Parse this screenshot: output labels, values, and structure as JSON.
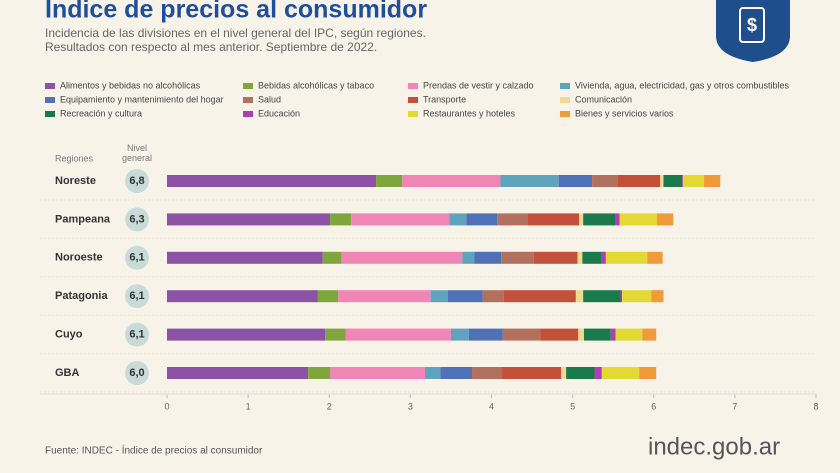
{
  "header": {
    "title": "Indice de precios al consumidor",
    "subtitle": [
      "Incidencia de las divisiones en el nivel general del IPC, según regiones.",
      "Resultados con respecto al mes anterior. Septiembre de 2022."
    ]
  },
  "chart_data": {
    "type": "stacked-bar-horizontal",
    "category_header": "Regiones",
    "categories": [
      "Noreste",
      "Pampeana",
      "Noroeste",
      "Patagonia",
      "Cuyo",
      "GBA"
    ],
    "nivel_general": {
      "label": "Nivel general",
      "values": [
        6.8,
        6.3,
        6.1,
        6.1,
        6.1,
        6.0
      ],
      "value_labels": [
        "6,8",
        "6,3",
        "6,1",
        "6,1",
        "6,1",
        "6,0"
      ]
    },
    "series": [
      {
        "name": "Alimentos y bebidas no alcohólicas",
        "color": "#8b52a6",
        "values": [
          2.58,
          2.01,
          1.92,
          1.86,
          1.95,
          1.74
        ]
      },
      {
        "name": "Bebidas alcohólicas y tabaco",
        "color": "#7fa63c",
        "values": [
          0.32,
          0.26,
          0.23,
          0.25,
          0.25,
          0.27
        ]
      },
      {
        "name": "Prendas de vestir y calzado",
        "color": "#ef86b6",
        "values": [
          1.21,
          1.21,
          1.49,
          1.14,
          1.3,
          1.17
        ]
      },
      {
        "name": "Vivienda, agua, electricidad, gas y otros combustibles",
        "color": "#5fa3bd",
        "values": [
          0.72,
          0.21,
          0.15,
          0.21,
          0.22,
          0.19
        ]
      },
      {
        "name": "Equipamiento y mantenimiento del hogar",
        "color": "#4f72b6",
        "values": [
          0.41,
          0.38,
          0.33,
          0.43,
          0.42,
          0.39
        ]
      },
      {
        "name": "Salud",
        "color": "#b2705f",
        "values": [
          0.31,
          0.38,
          0.4,
          0.26,
          0.46,
          0.37
        ]
      },
      {
        "name": "Transporte",
        "color": "#c2503a",
        "values": [
          0.53,
          0.63,
          0.54,
          0.89,
          0.47,
          0.73
        ]
      },
      {
        "name": "Comunicación",
        "color": "#f1d992",
        "values": [
          0.04,
          0.05,
          0.06,
          0.09,
          0.07,
          0.06
        ]
      },
      {
        "name": "Recreación y cultura",
        "color": "#1b7a4b",
        "values": [
          0.23,
          0.4,
          0.23,
          0.46,
          0.33,
          0.35
        ]
      },
      {
        "name": "Educación",
        "color": "#b03db8",
        "values": [
          0.01,
          0.05,
          0.06,
          0.02,
          0.06,
          0.09
        ]
      },
      {
        "name": "Restaurantes y hoteles",
        "color": "#e2d934",
        "values": [
          0.26,
          0.46,
          0.51,
          0.36,
          0.33,
          0.46
        ]
      },
      {
        "name": "Bienes y servicios varios",
        "color": "#f09a3a",
        "values": [
          0.2,
          0.2,
          0.19,
          0.15,
          0.17,
          0.21
        ]
      }
    ],
    "xlim": [
      0,
      8
    ],
    "xticks": [
      0,
      1,
      2,
      3,
      4,
      5,
      6,
      7,
      8
    ]
  },
  "footer": {
    "source": "Fuente: INDEC - Índice de precios al consumidor",
    "brand": "indec.gob.ar"
  }
}
